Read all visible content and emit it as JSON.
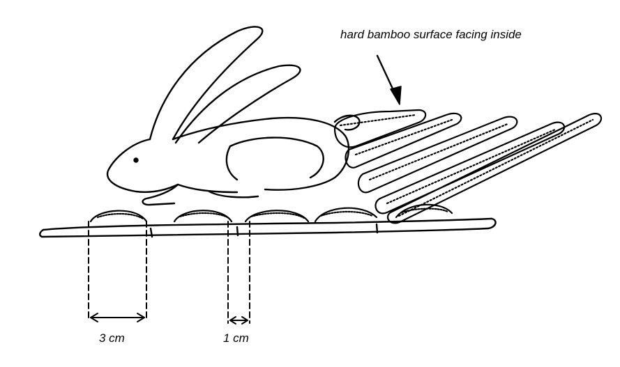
{
  "labels": {
    "surface_note": "hard bamboo surface facing inside",
    "wide_gap": "3 cm",
    "narrow_gap": "1 cm"
  },
  "colors": {
    "ink": "#000000",
    "paper": "#ffffff"
  }
}
